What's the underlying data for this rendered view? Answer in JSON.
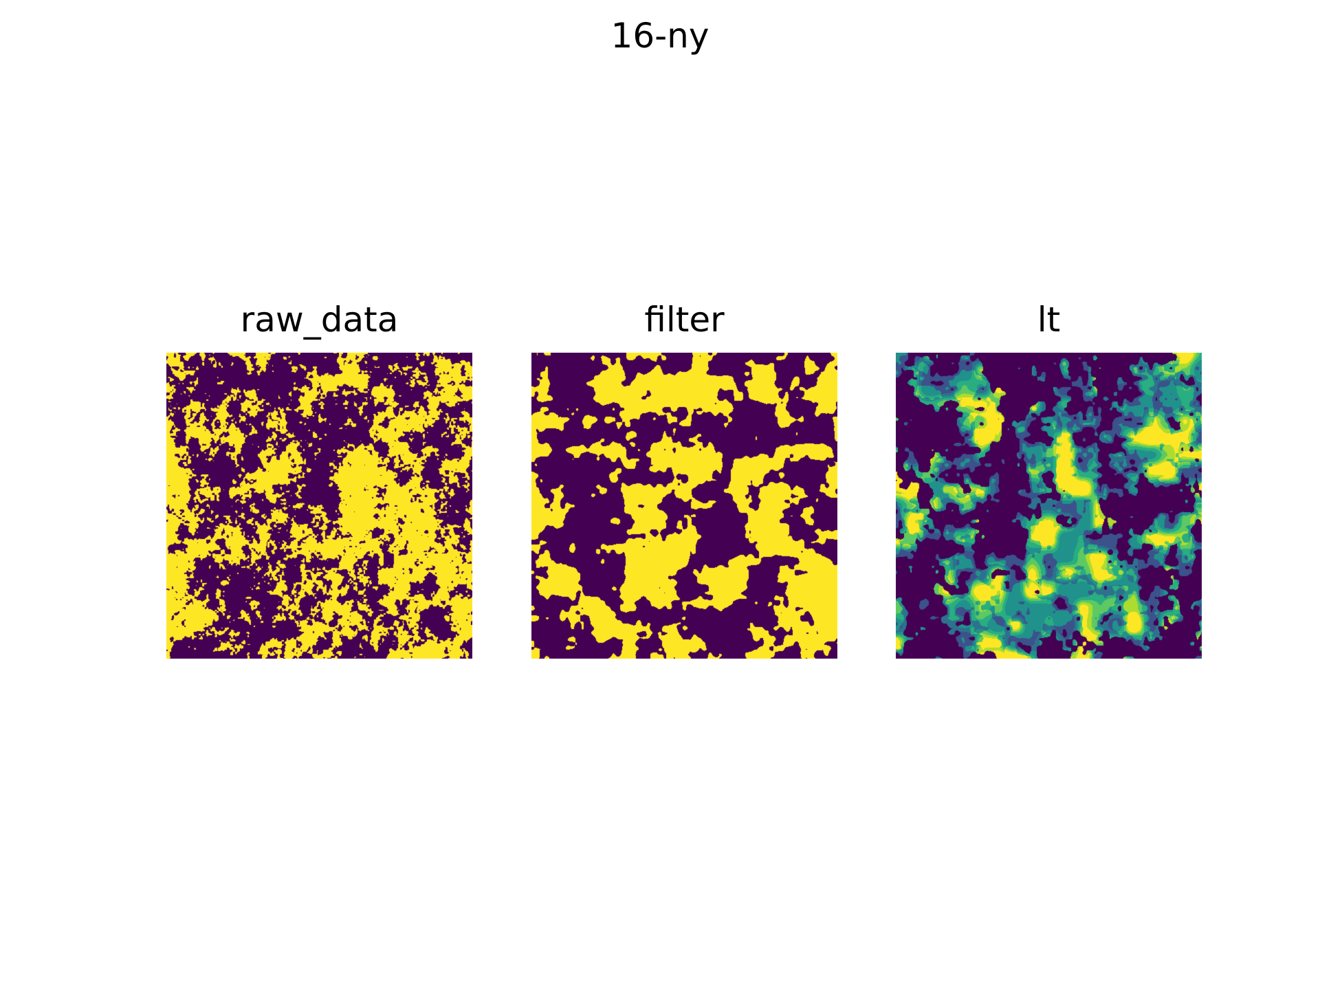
{
  "figure": {
    "suptitle": "16-ny"
  },
  "panels": [
    {
      "title": "raw_data",
      "colormap": "binary-viridis",
      "colors": {
        "low": "#440154",
        "high": "#fde725"
      },
      "seed": 17,
      "fill_fraction": 0.5,
      "noise": "fine"
    },
    {
      "title": "filter",
      "colormap": "binary-viridis",
      "colors": {
        "low": "#440154",
        "high": "#fde725"
      },
      "seed": 29,
      "fill_fraction": 0.5,
      "noise": "smooth"
    },
    {
      "title": "lt",
      "colormap": "viridis",
      "colors": {
        "background": "#440154",
        "levels": [
          "#3b528b",
          "#2c728e",
          "#21918c",
          "#28ae80",
          "#5ec962",
          "#addc30",
          "#fde725"
        ]
      },
      "seed": 43,
      "fill_fraction": 0.5,
      "noise": "blobs"
    }
  ]
}
